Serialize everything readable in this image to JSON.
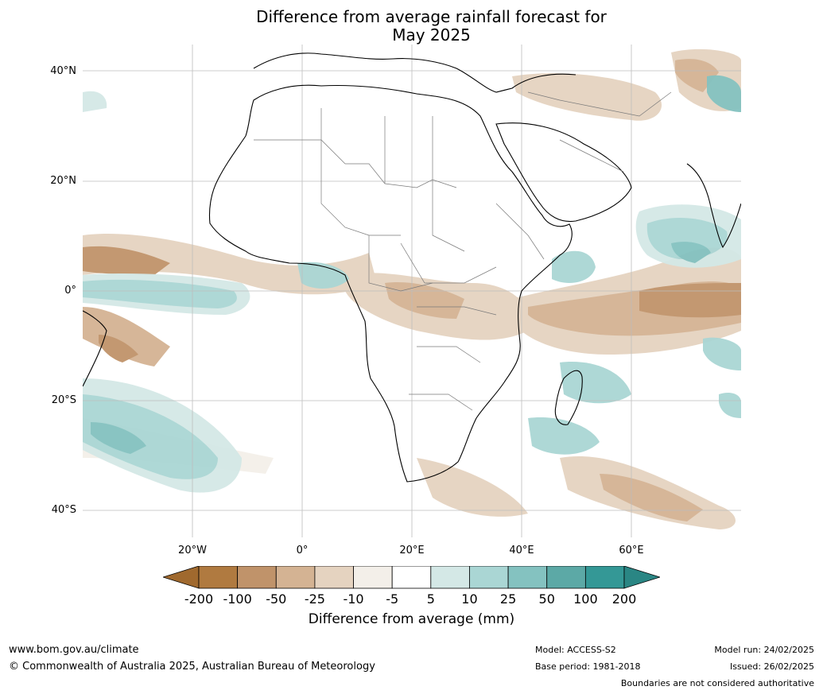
{
  "title_line1": "Difference from average rainfall forecast for",
  "title_line2": "May 2025",
  "lat_labels": [
    "40°N",
    "20°N",
    "0°",
    "20°S",
    "40°S"
  ],
  "lon_labels": [
    "20°W",
    "0°",
    "20°E",
    "40°E",
    "60°E"
  ],
  "colorbar": {
    "ticks": [
      "-200",
      "-100",
      "-50",
      "-25",
      "-10",
      "-5",
      "5",
      "10",
      "25",
      "50",
      "100",
      "200"
    ],
    "colors": [
      "#a0692e",
      "#b07a40",
      "#c0936a",
      "#d4b393",
      "#e5d3c0",
      "#f3efe9",
      "#ffffff",
      "#d4e8e6",
      "#aad6d4",
      "#84c2c0",
      "#5ca9a6",
      "#349896",
      "#2a8684"
    ],
    "label": "Difference from average (mm)"
  },
  "footer": {
    "url": "www.bom.gov.au/climate",
    "copyright": "© Commonwealth of Australia 2025, Australian Bureau of Meteorology",
    "model": "Model: ACCESS-S2",
    "base_period": "Base period: 1981-2018",
    "model_run": "Model run: 24/02/2025",
    "issued": "Issued: 26/02/2025",
    "disclaimer": "Boundaries are not considered authoritative"
  }
}
